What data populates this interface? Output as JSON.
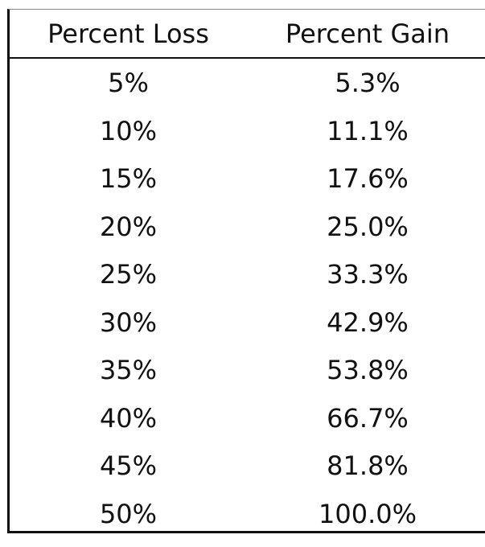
{
  "table": {
    "header": [
      "Percent Loss",
      "Percent Gain"
    ],
    "rows": [
      [
        "5%",
        "5.3%"
      ],
      [
        "10%",
        "11.1%"
      ],
      [
        "15%",
        "17.6%"
      ],
      [
        "20%",
        "25.0%"
      ],
      [
        "25%",
        "33.3%"
      ],
      [
        "30%",
        "42.9%"
      ],
      [
        "35%",
        "53.8%"
      ],
      [
        "40%",
        "66.7%"
      ],
      [
        "45%",
        "81.8%"
      ],
      [
        "50%",
        "100.0%"
      ]
    ]
  }
}
